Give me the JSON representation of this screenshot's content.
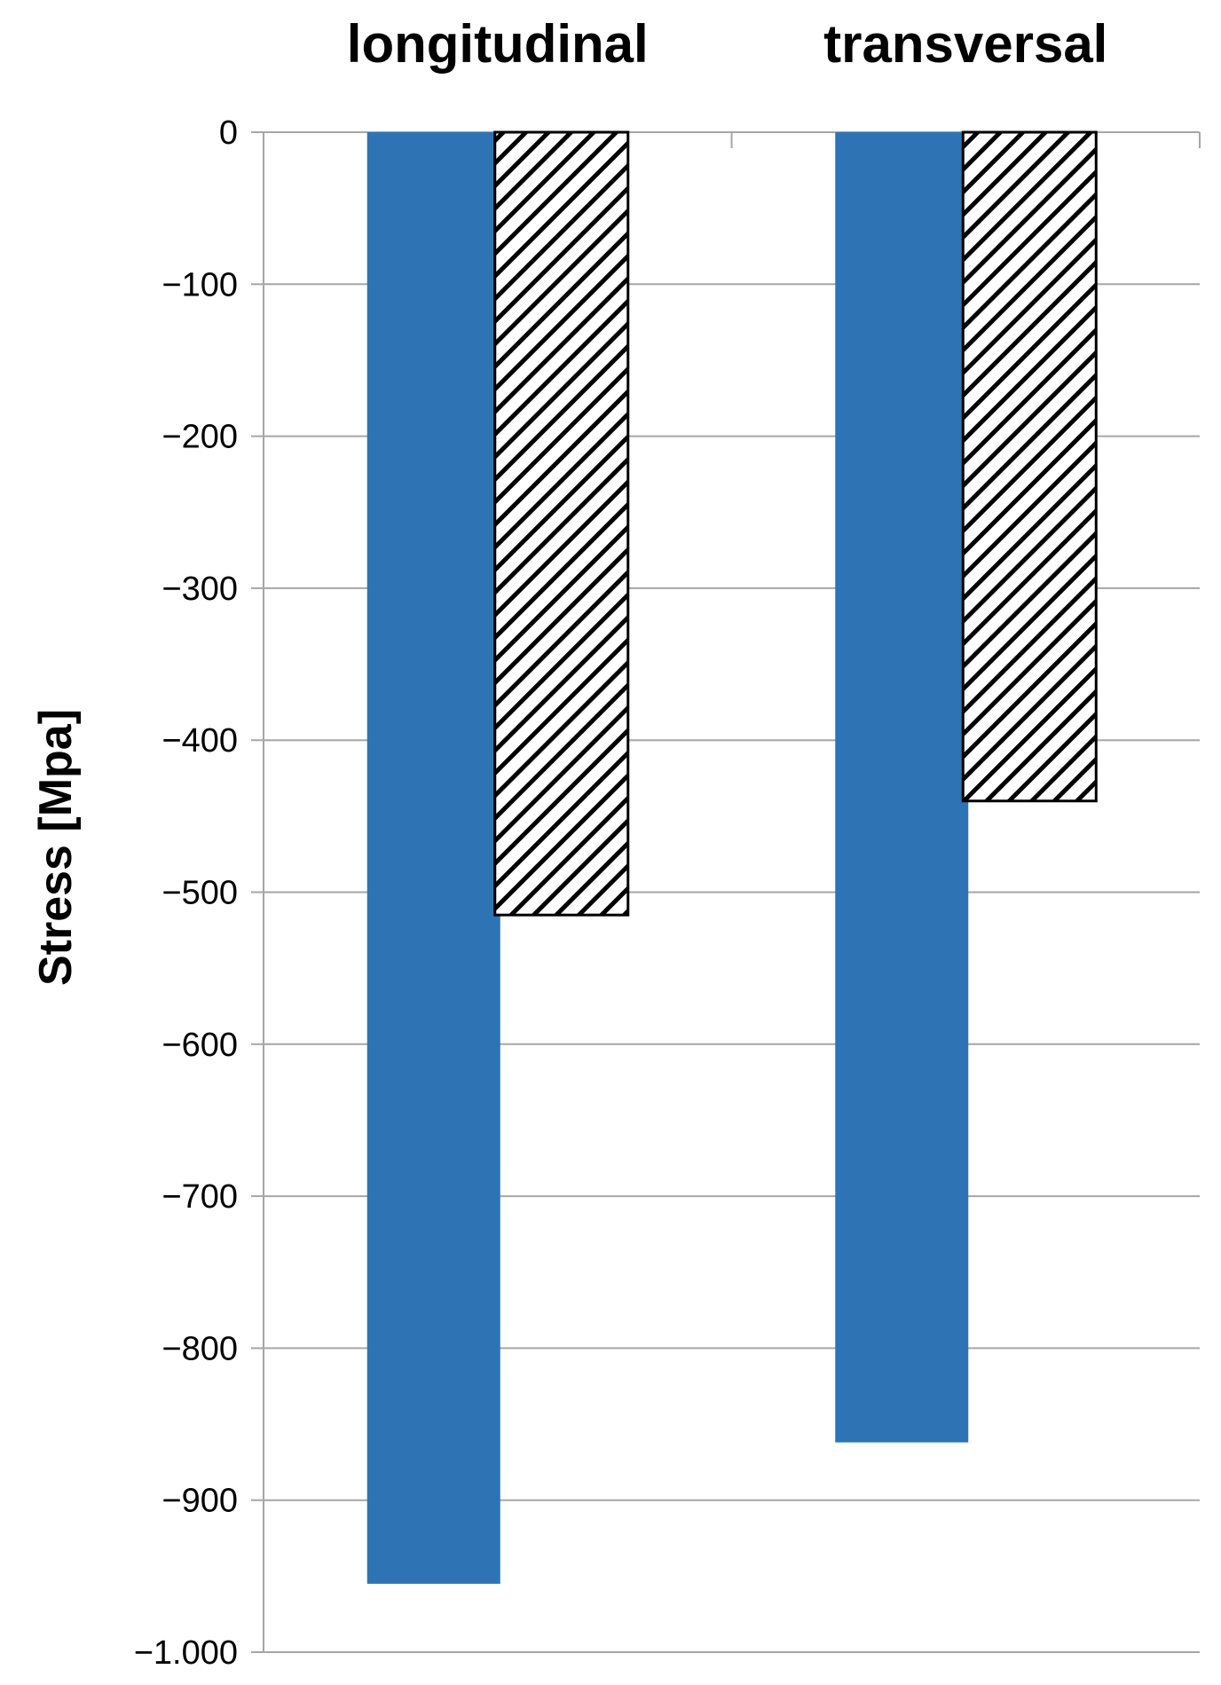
{
  "chart_data": {
    "type": "bar",
    "categories": [
      "longitudinal",
      "transversal"
    ],
    "series": [
      {
        "values": [
          -955,
          -862
        ],
        "fill": "solid",
        "color": "#2E74B5"
      },
      {
        "values": [
          -515,
          -440
        ],
        "fill": "hatched",
        "color": "#000000"
      }
    ],
    "ylabel": "Stress [Mpa]",
    "ylim": [
      -1000,
      0
    ],
    "yticks": [
      0,
      -100,
      -200,
      -300,
      -400,
      -500,
      -600,
      -700,
      -800,
      -900,
      -1000
    ],
    "ytick_labels": [
      "0",
      "−100",
      "−200",
      "−300",
      "−400",
      "−500",
      "−600",
      "−700",
      "−800",
      "−900",
      "−1.000"
    ],
    "category_labels_position": "top",
    "grid": true,
    "legend": false
  }
}
